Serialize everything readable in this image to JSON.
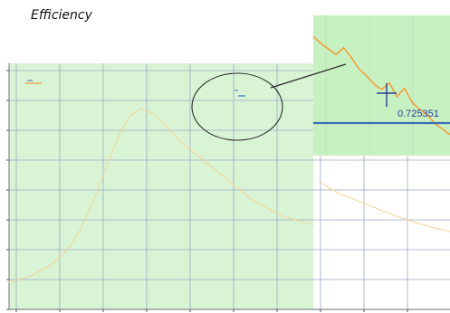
{
  "title": "Efficiency",
  "colors": {
    "plot_bg": "#d9f3d5",
    "grid": "#9aa9c4",
    "curve": "#f2a03c",
    "curve_light": "#f3d596",
    "zoom_bg": "#c8f1c2",
    "hline": "#3b6fb5",
    "ellipse": "#2a2a2a",
    "label": "#2a3d9a"
  },
  "chart_data": [
    {
      "type": "line",
      "title": "Efficiency",
      "xlabel": "",
      "ylabel": "",
      "x_tick_count": 12,
      "y_tick_count": 9,
      "grid": true,
      "series": [
        {
          "x": [
            0,
            0.5,
            1,
            1.5,
            2,
            2.5,
            3,
            3.5,
            4,
            4.5,
            5,
            5.5,
            6,
            6.5,
            7,
            7.5,
            8,
            8.5,
            9,
            9.5,
            10,
            10.5,
            11,
            11.5,
            12,
            12.5,
            13,
            13.5,
            14,
            14.5,
            15
          ],
          "y": [
            0.1,
            0.11,
            0.12,
            0.14,
            0.16,
            0.19,
            0.23,
            0.29,
            0.37,
            0.46,
            0.56,
            0.65,
            0.71,
            0.735,
            0.72,
            0.69,
            0.65,
            0.61,
            0.58,
            0.55,
            0.52,
            0.49,
            0.46,
            0.43,
            0.4,
            0.38,
            0.36,
            0.34,
            0.33,
            0.32,
            0.31
          ]
        }
      ]
    },
    {
      "type": "line",
      "title": "",
      "reference_value": 0.725351,
      "annotation": "0.725351",
      "series": [
        {
          "x": [
            0,
            1,
            2,
            3,
            4,
            5,
            6,
            7,
            8,
            9,
            10,
            11,
            12,
            13,
            14,
            15,
            16,
            17,
            18
          ],
          "y": [
            0.765,
            0.76,
            0.756,
            0.752,
            0.757,
            0.75,
            0.742,
            0.737,
            0.731,
            0.727,
            0.732,
            0.722,
            0.728,
            0.718,
            0.713,
            0.709,
            0.703,
            0.699,
            0.695
          ]
        }
      ]
    }
  ]
}
